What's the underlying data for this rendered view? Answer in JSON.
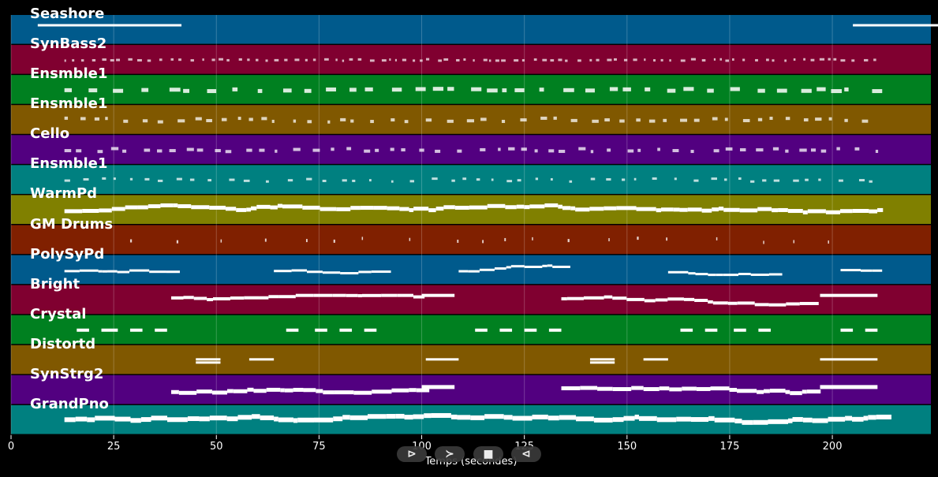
{
  "app": {
    "x_axis_label": "Temps (secondes)"
  },
  "axis": {
    "xlim": [
      0,
      224
    ],
    "ticks": [
      0,
      25,
      50,
      75,
      100,
      125,
      150,
      175,
      200
    ],
    "tick_labels": [
      "0",
      "25",
      "50",
      "75",
      "100",
      "125",
      "150",
      "175",
      "200"
    ]
  },
  "tracks": [
    {
      "name": "Seashore",
      "color": "#005a8c"
    },
    {
      "name": "SynBass2",
      "color": "#800030"
    },
    {
      "name": "Ensmble1",
      "color": "#008020"
    },
    {
      "name": "Ensmble1",
      "color": "#805800"
    },
    {
      "name": "Cello",
      "color": "#520080"
    },
    {
      "name": "Ensmble1",
      "color": "#008080"
    },
    {
      "name": "WarmPd",
      "color": "#808000"
    },
    {
      "name": "GM Drums",
      "color": "#802000"
    },
    {
      "name": "PolySyPd",
      "color": "#005a8c"
    },
    {
      "name": "Bright",
      "color": "#800030"
    },
    {
      "name": "Crystal",
      "color": "#008020"
    },
    {
      "name": "Distortd",
      "color": "#805800"
    },
    {
      "name": "SynStrg2",
      "color": "#520080"
    },
    {
      "name": "GrandPno",
      "color": "#008080"
    }
  ],
  "controls": {
    "play": "⊳",
    "forward": "≻",
    "stop": "■",
    "back": "⊲"
  }
}
